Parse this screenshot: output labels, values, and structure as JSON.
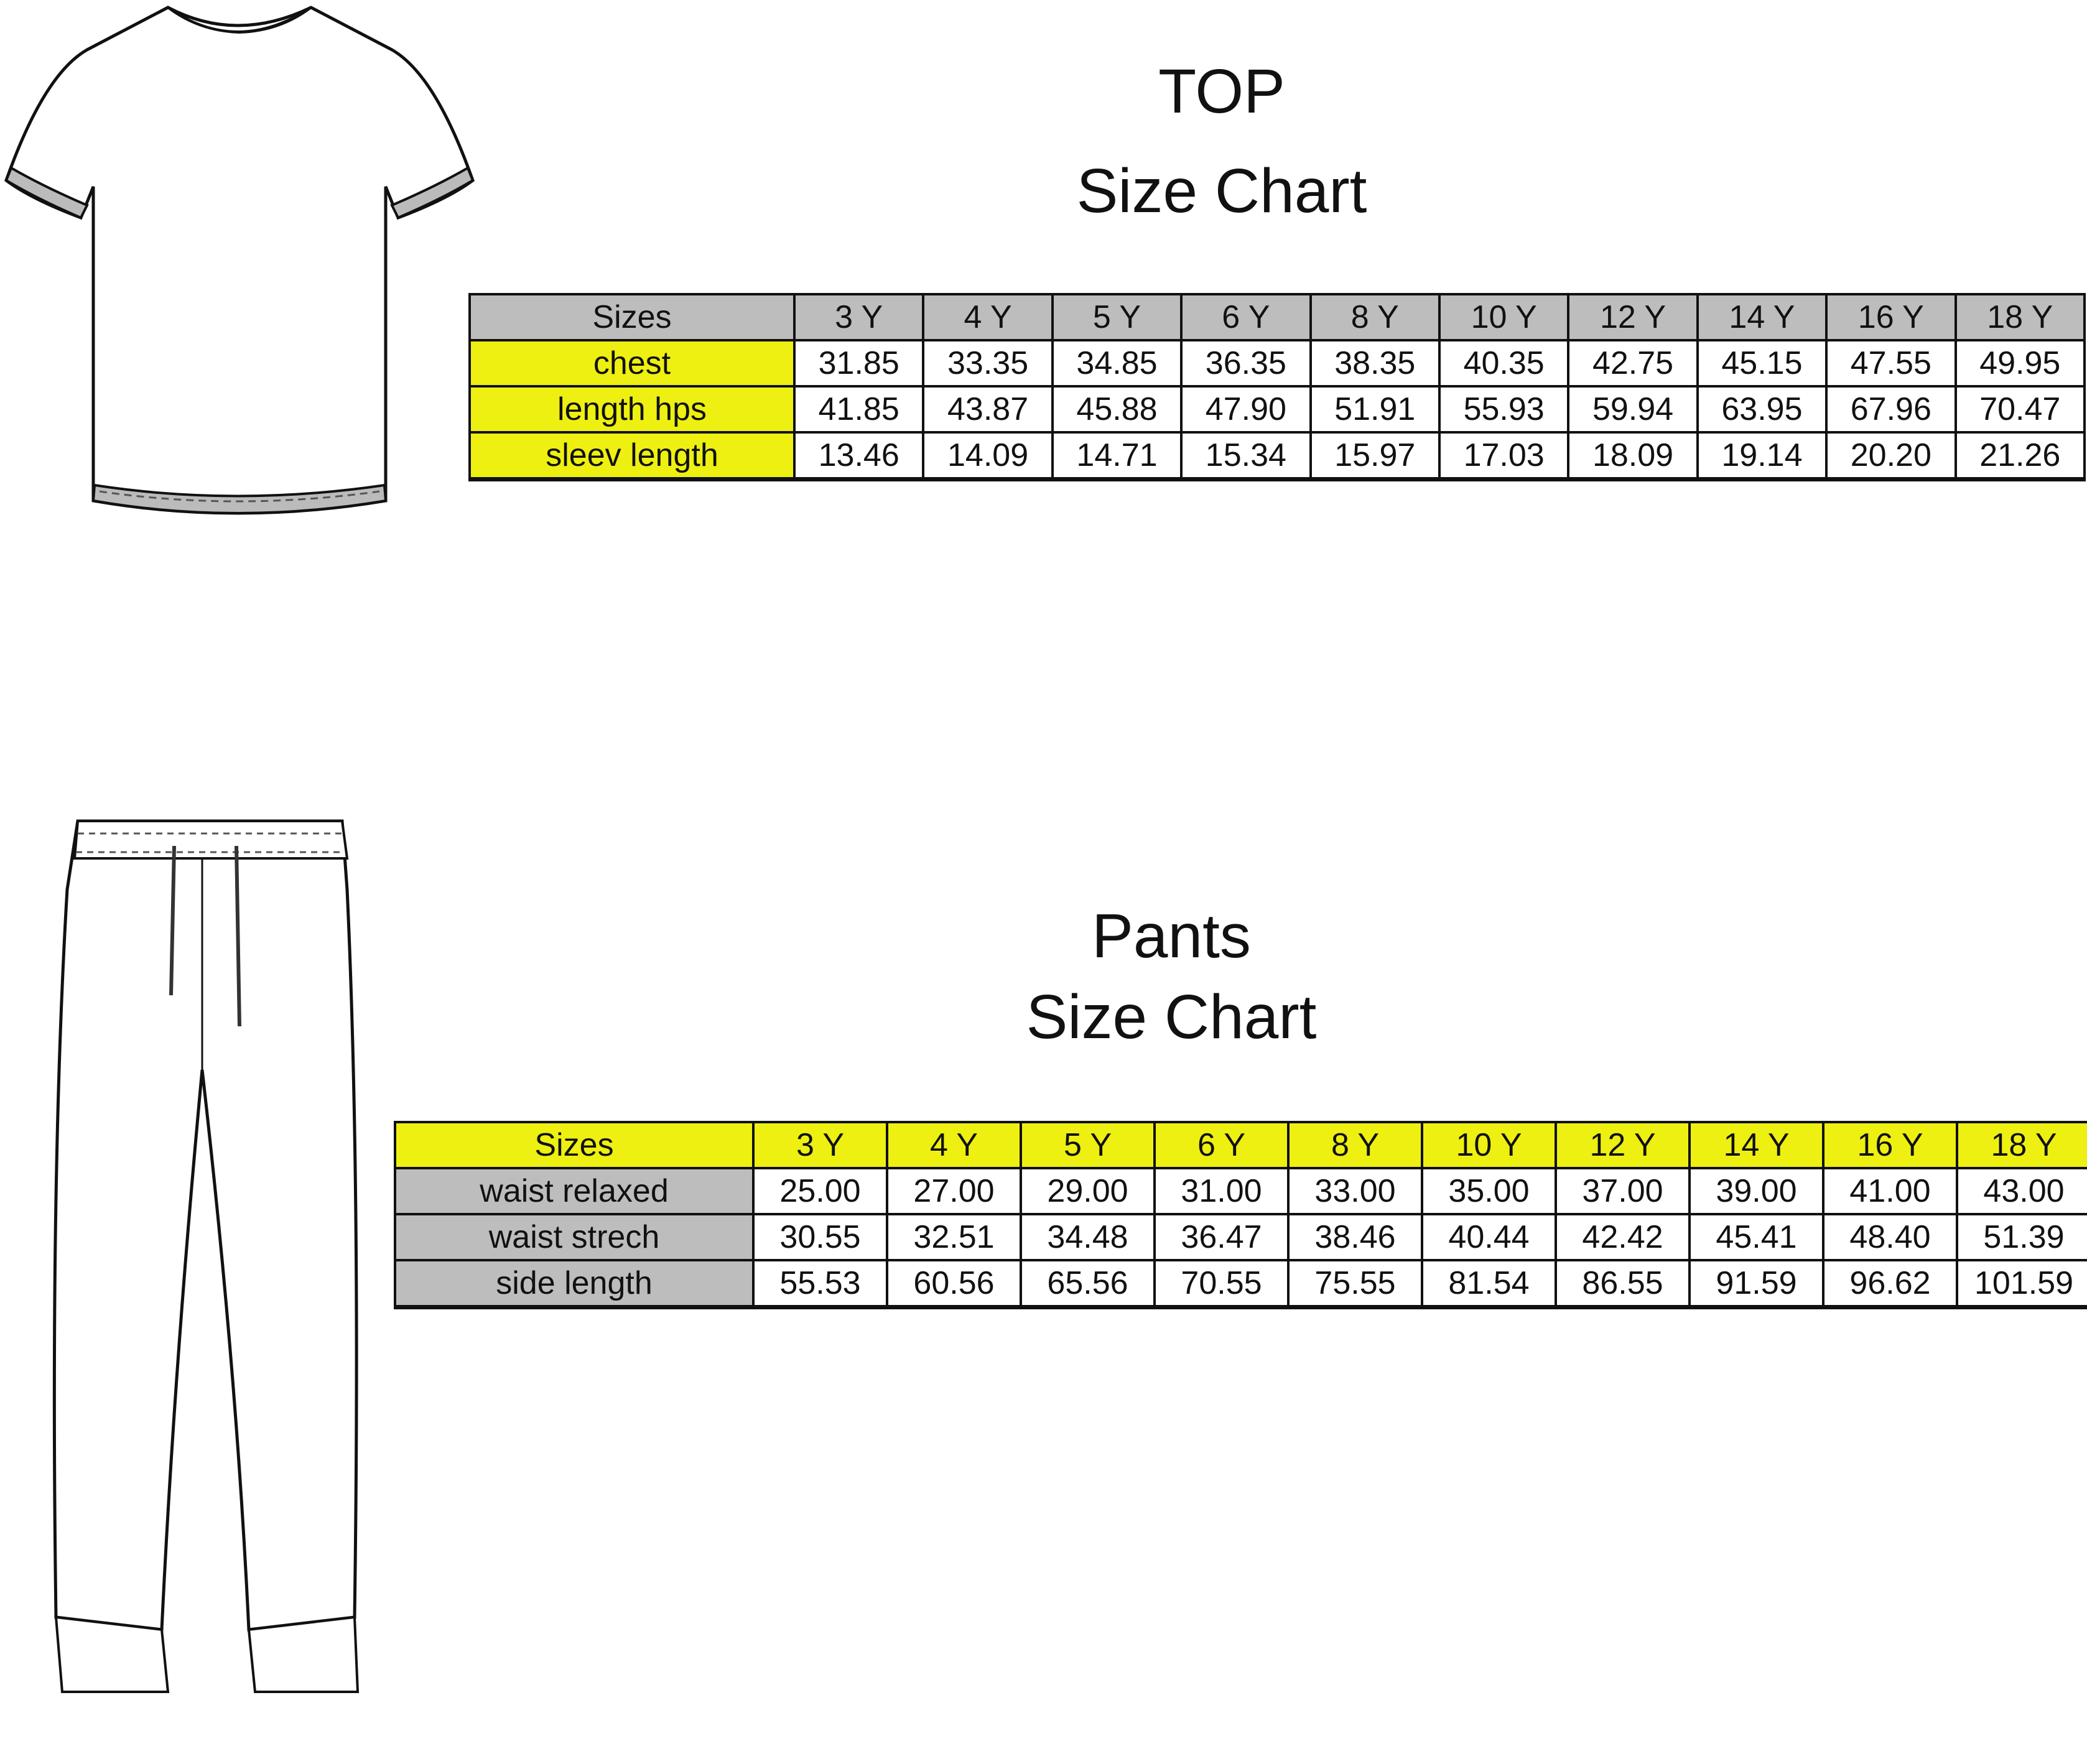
{
  "top": {
    "title_line1": "TOP",
    "title_line2": "Size Chart",
    "header_label": "Sizes",
    "sizes": [
      "3 Y",
      "4 Y",
      "5 Y",
      "6 Y",
      "8 Y",
      "10 Y",
      "12 Y",
      "14 Y",
      "16 Y",
      "18 Y"
    ],
    "rows": [
      {
        "label": "chest",
        "values": [
          "31.85",
          "33.35",
          "34.85",
          "36.35",
          "38.35",
          "40.35",
          "42.75",
          "45.15",
          "47.55",
          "49.95"
        ]
      },
      {
        "label": "length hps",
        "values": [
          "41.85",
          "43.87",
          "45.88",
          "47.90",
          "51.91",
          "55.93",
          "59.94",
          "63.95",
          "67.96",
          "70.47"
        ]
      },
      {
        "label": "sleev length",
        "values": [
          "13.46",
          "14.09",
          "14.71",
          "15.34",
          "15.97",
          "17.03",
          "18.09",
          "19.14",
          "20.20",
          "21.26"
        ]
      }
    ]
  },
  "pants": {
    "title_line1": "Pants",
    "title_line2": "Size Chart",
    "header_label": "Sizes",
    "sizes": [
      "3 Y",
      "4 Y",
      "5 Y",
      "6 Y",
      "8 Y",
      "10 Y",
      "12 Y",
      "14 Y",
      "16 Y",
      "18 Y"
    ],
    "rows": [
      {
        "label": "waist relaxed",
        "values": [
          "25.00",
          "27.00",
          "29.00",
          "31.00",
          "33.00",
          "35.00",
          "37.00",
          "39.00",
          "41.00",
          "43.00"
        ]
      },
      {
        "label": "waist strech",
        "values": [
          "30.55",
          "32.51",
          "34.48",
          "36.47",
          "38.46",
          "40.44",
          "42.42",
          "45.41",
          "48.40",
          "51.39"
        ]
      },
      {
        "label": "side length",
        "values": [
          "55.53",
          "60.56",
          "65.56",
          "70.55",
          "75.55",
          "81.54",
          "86.55",
          "91.59",
          "96.62",
          "101.59"
        ]
      }
    ]
  },
  "colors": {
    "header_gray": "#bdbdbd",
    "label_yellow": "#eef011",
    "border": "#111111"
  },
  "illustrations": [
    "t-shirt-flat-sketch",
    "jogger-pants-flat-sketch"
  ]
}
